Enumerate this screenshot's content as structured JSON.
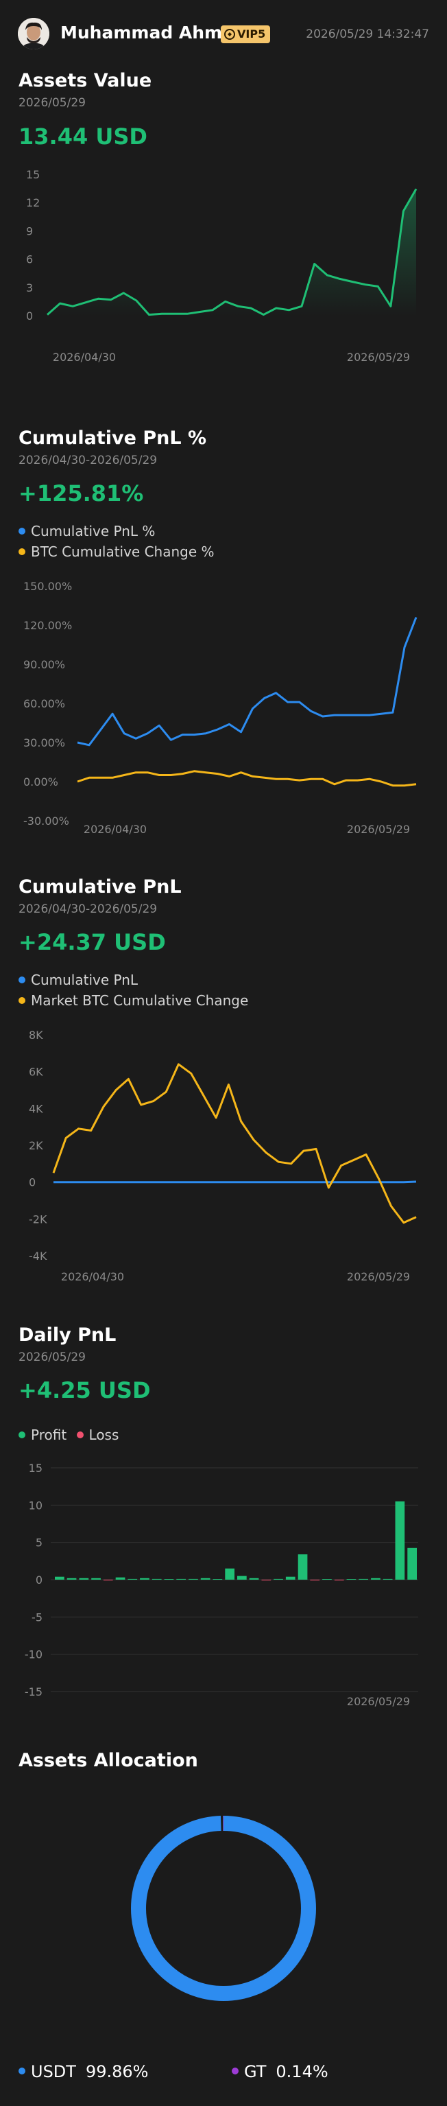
{
  "header": {
    "username": "Muhammad Ahmad",
    "vip_label": "VIP5",
    "timestamp": "2026/05/29 14:32:47"
  },
  "colors": {
    "positive": "#1fbf75",
    "negative": "#f0506e",
    "blue": "#2d8cf0",
    "yellow": "#f5b619",
    "purple": "#9d3cd6",
    "background": "#1b1b1b"
  },
  "assets_value": {
    "title": "Assets Value",
    "date": "2026/05/29",
    "value": "13.44 USD"
  },
  "cumulative_pnl_pct": {
    "title": "Cumulative PnL %",
    "date": "2026/04/30-2026/05/29",
    "value": "+125.81%",
    "legend": [
      "Cumulative PnL %",
      "BTC Cumulative Change %"
    ]
  },
  "cumulative_pnl": {
    "title": "Cumulative PnL",
    "date": "2026/04/30-2026/05/29",
    "value": "+24.37 USD",
    "legend": [
      "Cumulative PnL",
      "Market BTC Cumulative Change"
    ]
  },
  "daily_pnl": {
    "title": "Daily PnL",
    "date": "2026/05/29",
    "value": "+4.25 USD",
    "legend": [
      "Profit",
      "Loss"
    ]
  },
  "assets_allocation": {
    "title": "Assets Allocation",
    "items": [
      {
        "name": "USDT",
        "percent": "99.86%",
        "share": 99.86,
        "color": "#2d8cf0"
      },
      {
        "name": "GT",
        "percent": "0.14%",
        "share": 0.14,
        "color": "#9d3cd6"
      }
    ]
  },
  "chart_data": [
    {
      "type": "area",
      "title": "Assets Value",
      "yticks": [
        "15",
        "12",
        "9",
        "6",
        "3",
        "0"
      ],
      "xticks": [
        "2026/04/30",
        "2026/05/29"
      ],
      "ylim": [
        0,
        15
      ],
      "grid": false,
      "series": [
        {
          "values": [
            0.1,
            1.3,
            1.0,
            1.4,
            1.8,
            1.7,
            2.4,
            1.6,
            0.1,
            0.2,
            0.2,
            0.2,
            0.4,
            0.6,
            1.5,
            1.0,
            0.8,
            0.1,
            0.8,
            0.6,
            1.0,
            5.5,
            4.3,
            3.9,
            3.6,
            3.3,
            3.1,
            1.0,
            11.1,
            13.44
          ]
        }
      ]
    },
    {
      "type": "line",
      "title": "Cumulative PnL %",
      "yticks": [
        "150.00%",
        "120.00%",
        "90.00%",
        "60.00%",
        "30.00%",
        "0.00%",
        "-30.00%"
      ],
      "xticks": [
        "2026/04/30",
        "2026/05/29"
      ],
      "ylim": [
        -30,
        150
      ],
      "grid": false,
      "series": [
        {
          "name": "Cumulative PnL %",
          "values": [
            30,
            28,
            40,
            52,
            37,
            33,
            37,
            43,
            32,
            36,
            36,
            37,
            40,
            44,
            38,
            56,
            64,
            68,
            61,
            61,
            54,
            50,
            51,
            51,
            51,
            51,
            52,
            53,
            103,
            126
          ]
        },
        {
          "name": "BTC Cumulative Change %",
          "values": [
            0,
            3,
            3,
            3,
            5,
            7,
            7,
            5,
            5,
            6,
            8,
            7,
            6,
            4,
            7,
            4,
            3,
            2,
            2,
            1,
            2,
            2,
            -2,
            1,
            1,
            2,
            0,
            -3,
            -3,
            -2
          ]
        }
      ]
    },
    {
      "type": "line",
      "title": "Cumulative PnL",
      "yticks": [
        "8K",
        "6K",
        "4K",
        "2K",
        "0",
        "-2K",
        "-4K"
      ],
      "xticks": [
        "2026/04/30",
        "2026/05/29"
      ],
      "ylim": [
        -4000,
        8000
      ],
      "grid": false,
      "series": [
        {
          "name": "Cumulative PnL",
          "values": [
            0,
            0,
            0,
            0,
            0,
            0,
            0,
            0,
            0,
            0,
            0,
            0,
            0,
            0,
            0,
            0,
            0,
            0,
            0,
            0,
            0,
            0,
            0,
            0,
            0,
            0,
            0,
            0,
            0,
            24.37
          ]
        },
        {
          "name": "Market BTC Cumulative Change",
          "values": [
            500,
            2400,
            2900,
            2800,
            4100,
            5000,
            5600,
            4200,
            4400,
            4900,
            6400,
            5900,
            4700,
            3500,
            5300,
            3300,
            2300,
            1600,
            1100,
            1000,
            1700,
            1800,
            -300,
            900,
            1200,
            1500,
            200,
            -1300,
            -2200,
            -1900
          ]
        }
      ]
    },
    {
      "type": "bar",
      "title": "Daily PnL",
      "yticks": [
        "15",
        "10",
        "5",
        "0",
        "-5",
        "-10",
        "-15"
      ],
      "xticks": [
        "2026/05/29"
      ],
      "ylim": [
        -15,
        15
      ],
      "grid": true,
      "series": [
        {
          "name": "Profit / Loss",
          "values": [
            0.4,
            0.2,
            0.2,
            0.2,
            -0.1,
            0.3,
            0.1,
            0.2,
            0.1,
            0.0,
            0.1,
            0.1,
            0.2,
            0.0,
            1.5,
            0.5,
            0.2,
            -0.1,
            0.1,
            0.4,
            3.4,
            -0.1,
            0.0,
            -0.1,
            0.0,
            0.1,
            0.2,
            0.1,
            10.5,
            4.25
          ]
        }
      ]
    },
    {
      "type": "pie",
      "title": "Assets Allocation",
      "categories": [
        "USDT",
        "GT"
      ],
      "values": [
        99.86,
        0.14
      ]
    }
  ]
}
